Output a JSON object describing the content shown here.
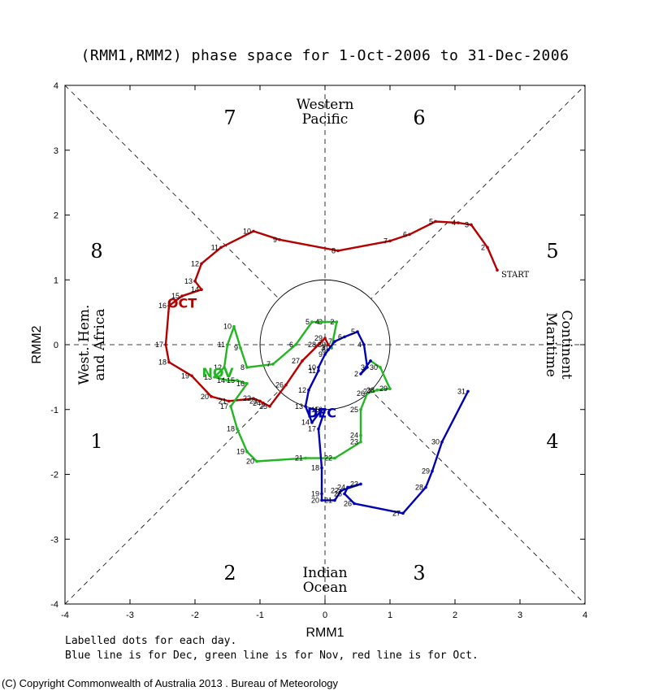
{
  "chart_data": {
    "type": "line",
    "title": "(RMM1,RMM2) phase space for  1-Oct-2006 to 31-Dec-2006",
    "xlabel": "RMM1",
    "ylabel": "RMM2",
    "xlim": [
      -4,
      4
    ],
    "ylim": [
      -4,
      4
    ],
    "ticks": [
      "-4",
      "-3",
      "-2",
      "-1",
      "0",
      "1",
      "2",
      "3",
      "4"
    ],
    "phase_numbers": [
      "1",
      "2",
      "3",
      "4",
      "5",
      "6",
      "7",
      "8"
    ],
    "regions": {
      "top": [
        "Western",
        "Pacific"
      ],
      "bottom": [
        "Indian",
        "Ocean"
      ],
      "left": [
        "West. Hem.",
        "and Africa"
      ],
      "right": [
        "Maritime",
        "Continent"
      ]
    },
    "start_label": "START",
    "series": [
      {
        "name": "Oct",
        "label": "OCT",
        "color": "#b40000",
        "points": [
          [
            2.65,
            1.15
          ],
          [
            2.5,
            1.5
          ],
          [
            2.25,
            1.85
          ],
          [
            2.05,
            1.88
          ],
          [
            1.7,
            1.9
          ],
          [
            1.3,
            1.7
          ],
          [
            1.0,
            1.6
          ],
          [
            0.2,
            1.45
          ],
          [
            -0.7,
            1.62
          ],
          [
            -1.1,
            1.75
          ],
          [
            -1.6,
            1.5
          ],
          [
            -1.9,
            1.25
          ],
          [
            -2.0,
            0.98
          ],
          [
            -1.9,
            0.85
          ],
          [
            -2.2,
            0.75
          ],
          [
            -2.4,
            0.6
          ],
          [
            -2.45,
            0.0
          ],
          [
            -2.4,
            -0.27
          ],
          [
            -2.05,
            -0.48
          ],
          [
            -1.75,
            -0.8
          ],
          [
            -1.48,
            -0.87
          ],
          [
            -1.1,
            -0.83
          ],
          [
            -1.0,
            -0.87
          ],
          [
            -0.95,
            -0.9
          ],
          [
            -0.85,
            -0.95
          ],
          [
            -0.6,
            -0.62
          ],
          [
            -0.35,
            -0.25
          ],
          [
            -0.1,
            0.0
          ],
          [
            0.0,
            0.1
          ],
          [
            0.05,
            0.0
          ],
          [
            0.1,
            -0.05
          ]
        ],
        "labels": [
          "",
          "2",
          "3",
          "4",
          "5",
          "6",
          "7",
          "8",
          "9",
          "10",
          "11",
          "12",
          "13",
          "14",
          "15",
          "16",
          "17",
          "18",
          "19",
          "20",
          "21",
          "22",
          "23",
          "24",
          "25",
          "26",
          "27",
          "28",
          "29",
          "30",
          "31"
        ]
      },
      {
        "name": "Nov",
        "label": "NOV",
        "color": "#22b722",
        "points": [
          [
            0.1,
            -0.05
          ],
          [
            0.18,
            0.35
          ],
          [
            0.0,
            0.35
          ],
          [
            -0.05,
            0.35
          ],
          [
            -0.2,
            0.35
          ],
          [
            -0.45,
            0.0
          ],
          [
            -0.8,
            -0.3
          ],
          [
            -1.2,
            -0.35
          ],
          [
            -1.3,
            -0.05
          ],
          [
            -1.4,
            0.28
          ],
          [
            -1.5,
            0.0
          ],
          [
            -1.55,
            -0.35
          ],
          [
            -1.7,
            -0.5
          ],
          [
            -1.5,
            -0.55
          ],
          [
            -1.35,
            -0.55
          ],
          [
            -1.2,
            -0.6
          ],
          [
            -1.45,
            -0.95
          ],
          [
            -1.35,
            -1.3
          ],
          [
            -1.2,
            -1.65
          ],
          [
            -1.05,
            -1.8
          ],
          [
            -0.3,
            -1.75
          ],
          [
            0.15,
            -1.75
          ],
          [
            0.55,
            -1.5
          ],
          [
            0.55,
            -1.4
          ],
          [
            0.55,
            -1.0
          ],
          [
            0.65,
            -0.75
          ],
          [
            0.75,
            -0.72
          ],
          [
            0.8,
            -0.7
          ],
          [
            1.0,
            -0.68
          ],
          [
            0.85,
            -0.35
          ],
          [
            0.7,
            -0.25
          ]
        ],
        "labels": [
          "",
          "2",
          "3",
          "4",
          "5",
          "6",
          "7",
          "8",
          "9",
          "10",
          "11",
          "12",
          "13",
          "14",
          "15",
          "16",
          "17",
          "18",
          "19",
          "20",
          "21",
          "22",
          "23",
          "24",
          "25",
          "26",
          "27",
          "28",
          "29",
          "30",
          ""
        ]
      },
      {
        "name": "Dec",
        "label": "DEC",
        "color": "#0000b4",
        "points": [
          [
            0.7,
            -0.25
          ],
          [
            0.55,
            -0.45
          ],
          [
            0.65,
            -0.35
          ],
          [
            0.6,
            0.0
          ],
          [
            0.5,
            0.2
          ],
          [
            0.3,
            0.12
          ],
          [
            0.15,
            0.05
          ],
          [
            0.05,
            -0.08
          ],
          [
            0.0,
            -0.15
          ],
          [
            -0.1,
            -0.35
          ],
          [
            -0.1,
            -0.4
          ],
          [
            -0.25,
            -0.7
          ],
          [
            -0.3,
            -0.95
          ],
          [
            -0.2,
            -1.2
          ],
          [
            -0.05,
            -1.0
          ],
          [
            0.0,
            -1.0
          ],
          [
            -0.1,
            -1.3
          ],
          [
            -0.05,
            -1.9
          ],
          [
            -0.05,
            -2.3
          ],
          [
            -0.05,
            -2.4
          ],
          [
            0.15,
            -2.4
          ],
          [
            0.25,
            -2.25
          ],
          [
            0.55,
            -2.15
          ],
          [
            0.35,
            -2.2
          ],
          [
            0.3,
            -2.3
          ],
          [
            0.45,
            -2.45
          ],
          [
            1.2,
            -2.6
          ],
          [
            1.55,
            -2.2
          ],
          [
            1.65,
            -1.95
          ],
          [
            1.8,
            -1.5
          ],
          [
            2.2,
            -0.72
          ]
        ],
        "labels": [
          "",
          "2",
          "3",
          "4",
          "5",
          "6",
          "7",
          "8",
          "9",
          "10",
          "11",
          "12",
          "13",
          "14",
          "15",
          "16",
          "17",
          "18",
          "19",
          "20",
          "21",
          "22",
          "23",
          "24",
          "25",
          "26",
          "27",
          "28",
          "29",
          "30",
          "31"
        ]
      }
    ],
    "notes": [
      "Labelled dots for each day.",
      "Blue line is for Dec, green line is for Nov, red line is for Oct."
    ]
  },
  "footer": {
    "copyright": "(C) Copyright Commonwealth of Australia 2013 . Bureau of Meteorology"
  }
}
